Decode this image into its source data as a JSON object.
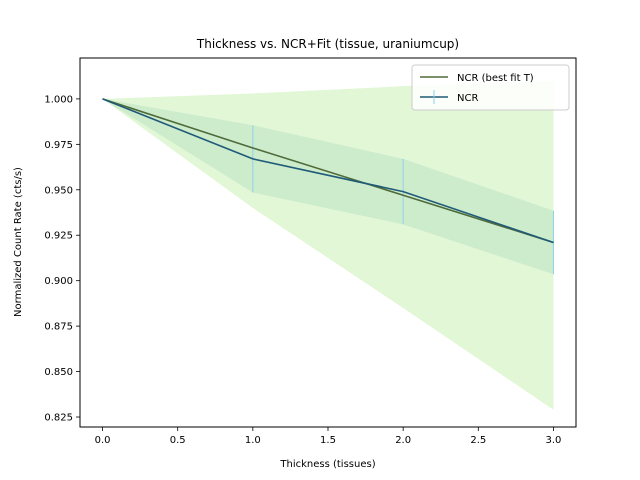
{
  "chart_data": {
    "type": "line",
    "title": "Thickness vs. NCR+Fit (tissue, uraniumcup)",
    "xlabel": "Thickness (tissues)",
    "ylabel": "Normalized Count Rate (cts/s)",
    "xlim": [
      -0.15,
      3.15
    ],
    "ylim": [
      0.8195,
      1.0225
    ],
    "xticks": [
      0.0,
      0.5,
      1.0,
      1.5,
      2.0,
      2.5,
      3.0
    ],
    "xtick_labels": [
      "0.0",
      "0.5",
      "1.0",
      "1.5",
      "2.0",
      "2.5",
      "3.0"
    ],
    "yticks": [
      0.825,
      0.85,
      0.875,
      0.9,
      0.925,
      0.95,
      0.975,
      1.0
    ],
    "ytick_labels": [
      "0.825",
      "0.850",
      "0.875",
      "0.900",
      "0.925",
      "0.950",
      "0.975",
      "1.000"
    ],
    "grid": false,
    "legend_position": "top-right",
    "x": [
      0,
      1,
      2,
      3
    ],
    "series": [
      {
        "name": "NCR (best fit T)",
        "values": [
          1.0,
          0.973,
          0.947,
          0.921
        ],
        "color": "#4f6b3a",
        "band_upper": [
          1.0,
          1.003,
          1.007,
          1.01
        ],
        "band_lower": [
          1.0,
          0.94,
          0.885,
          0.829
        ],
        "band_color": "#c8f0b4"
      },
      {
        "name": "NCR",
        "values": [
          1.0,
          0.967,
          0.949,
          0.921
        ],
        "error": [
          0.0,
          0.0185,
          0.018,
          0.0175
        ],
        "color": "#1f5a78",
        "errorbar_color": "#8fd0ec",
        "band_color": "#a9d6b9"
      }
    ]
  }
}
